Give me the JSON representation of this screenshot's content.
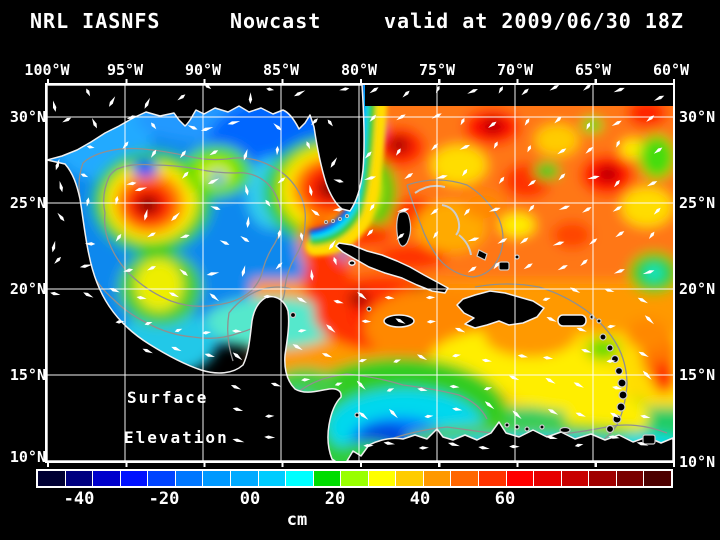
{
  "title": {
    "model": "NRL IASNFS",
    "product": "Nowcast",
    "valid": "valid at 2009/06/30 18Z"
  },
  "axes": {
    "longitude_labels": [
      "100°W",
      "95°W",
      "90°W",
      "85°W",
      "80°W",
      "75°W",
      "70°W",
      "65°W",
      "60°W"
    ],
    "latitude_labels": [
      "30°N",
      "25°N",
      "20°N",
      "15°N",
      "10°N"
    ]
  },
  "map": {
    "field_label_line1": "Surface",
    "field_label_line2": "Elevation"
  },
  "colorbar": {
    "unit": "cm",
    "tick_labels": [
      "-40",
      "-20",
      "00",
      "20",
      "40",
      "60"
    ],
    "segment_colors": [
      "#000033",
      "#000080",
      "#0000cc",
      "#0011ff",
      "#0044ff",
      "#0077ff",
      "#0099ff",
      "#00aaff",
      "#00ccff",
      "#00ffff",
      "#00dd00",
      "#99ff00",
      "#ffff00",
      "#ffcc00",
      "#ff9900",
      "#ff6600",
      "#ff3300",
      "#ff0000",
      "#e60000",
      "#c80000",
      "#a00000",
      "#7a0000",
      "#4d0000"
    ]
  },
  "colors": {
    "background": "#000000",
    "text": "#ffffff",
    "grid": "#ffffff",
    "coastline": "#f0f0f0",
    "bathymetry": "#909090",
    "land": "#000000",
    "vectors": "#ffffff"
  }
}
